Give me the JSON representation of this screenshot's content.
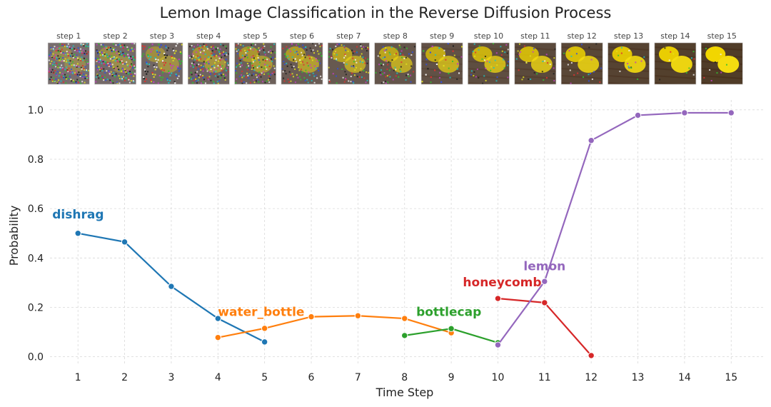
{
  "chart_data": {
    "type": "line",
    "title": "Lemon Image Classification in the Reverse Diffusion Process",
    "xlabel": "Time Step",
    "ylabel": "Probability",
    "xlim": [
      0.4,
      15.7
    ],
    "ylim": [
      -0.03,
      1.04
    ],
    "xticks": [
      1,
      2,
      3,
      4,
      5,
      6,
      7,
      8,
      9,
      10,
      11,
      12,
      13,
      14,
      15
    ],
    "yticks": [
      0.0,
      0.2,
      0.4,
      0.6,
      0.8,
      1.0
    ],
    "ytick_labels": [
      "0.0",
      "0.2",
      "0.4",
      "0.6",
      "0.8",
      "1.0"
    ],
    "grid": true,
    "step_images": {
      "labels": [
        "step 1",
        "step 2",
        "step 3",
        "step 4",
        "step 5",
        "step 6",
        "step 7",
        "step 8",
        "step 9",
        "step 10",
        "step 11",
        "step 12",
        "step 13",
        "step 14",
        "step 15"
      ],
      "description": "Thumbnails of a lemon image emerging from noise over 15 steps"
    },
    "series": [
      {
        "name": "dishrag",
        "color": "#1f77b4",
        "x": [
          1,
          2,
          3,
          4,
          5
        ],
        "y": [
          0.5,
          0.465,
          0.285,
          0.155,
          0.06
        ],
        "label_anchor": [
          0.45,
          0.56
        ]
      },
      {
        "name": "water_bottle",
        "color": "#ff7f0e",
        "x": [
          4,
          5,
          6,
          7,
          8,
          9
        ],
        "y": [
          0.078,
          0.115,
          0.162,
          0.166,
          0.155,
          0.097
        ],
        "label_anchor": [
          4.0,
          0.165
        ]
      },
      {
        "name": "bottlecap",
        "color": "#2ca02c",
        "x": [
          8,
          9,
          10
        ],
        "y": [
          0.086,
          0.114,
          0.057
        ],
        "label_anchor": [
          8.25,
          0.165
        ]
      },
      {
        "name": "honeycomb",
        "color": "#d62728",
        "x": [
          10,
          11,
          12
        ],
        "y": [
          0.236,
          0.219,
          0.005
        ],
        "label_anchor": [
          9.25,
          0.285
        ]
      },
      {
        "name": "lemon",
        "color": "#9467bd",
        "x": [
          10,
          11,
          12,
          13,
          14,
          15
        ],
        "y": [
          0.048,
          0.305,
          0.876,
          0.978,
          0.988,
          0.988
        ],
        "label_anchor": [
          10.55,
          0.35
        ]
      }
    ]
  }
}
